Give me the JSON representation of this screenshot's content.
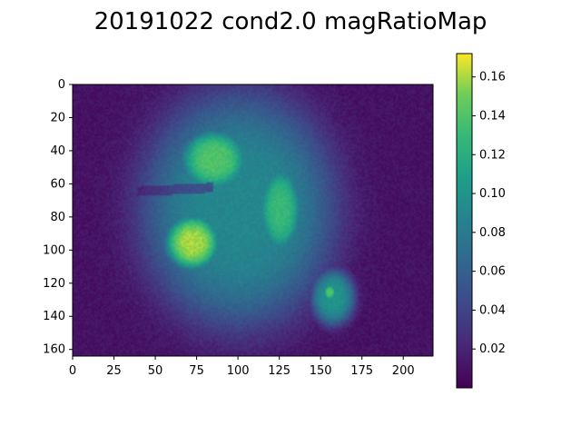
{
  "chart_data": {
    "type": "heatmap",
    "title": "20191022 cond2.0 magRatioMap",
    "colormap": "viridis",
    "x_ticks": [
      0,
      25,
      50,
      75,
      100,
      125,
      150,
      175,
      200
    ],
    "y_ticks": [
      0,
      20,
      40,
      60,
      80,
      100,
      120,
      140,
      160
    ],
    "xlim": [
      0,
      218
    ],
    "ylim": [
      164,
      0
    ],
    "colorbar": {
      "range": [
        0.0,
        0.172
      ],
      "ticks": [
        "0.02",
        "0.04",
        "0.06",
        "0.08",
        "0.10",
        "0.12",
        "0.14",
        "0.16"
      ]
    },
    "data_description_blobs": [
      {
        "cx": 100,
        "cy": 75,
        "rx": 62,
        "ry": 75,
        "value": 0.09
      },
      {
        "cx": 72,
        "cy": 95,
        "rx": 18,
        "ry": 18,
        "value": 0.16
      },
      {
        "cx": 85,
        "cy": 45,
        "rx": 22,
        "ry": 20,
        "value": 0.14
      },
      {
        "cx": 125,
        "cy": 75,
        "rx": 14,
        "ry": 28,
        "value": 0.13
      },
      {
        "cx": 157,
        "cy": 128,
        "rx": 14,
        "ry": 18,
        "value": 0.1
      },
      {
        "cx": 155,
        "cy": 125,
        "rx": 4,
        "ry": 5,
        "value": 0.14
      }
    ],
    "background_value": 0.01
  }
}
